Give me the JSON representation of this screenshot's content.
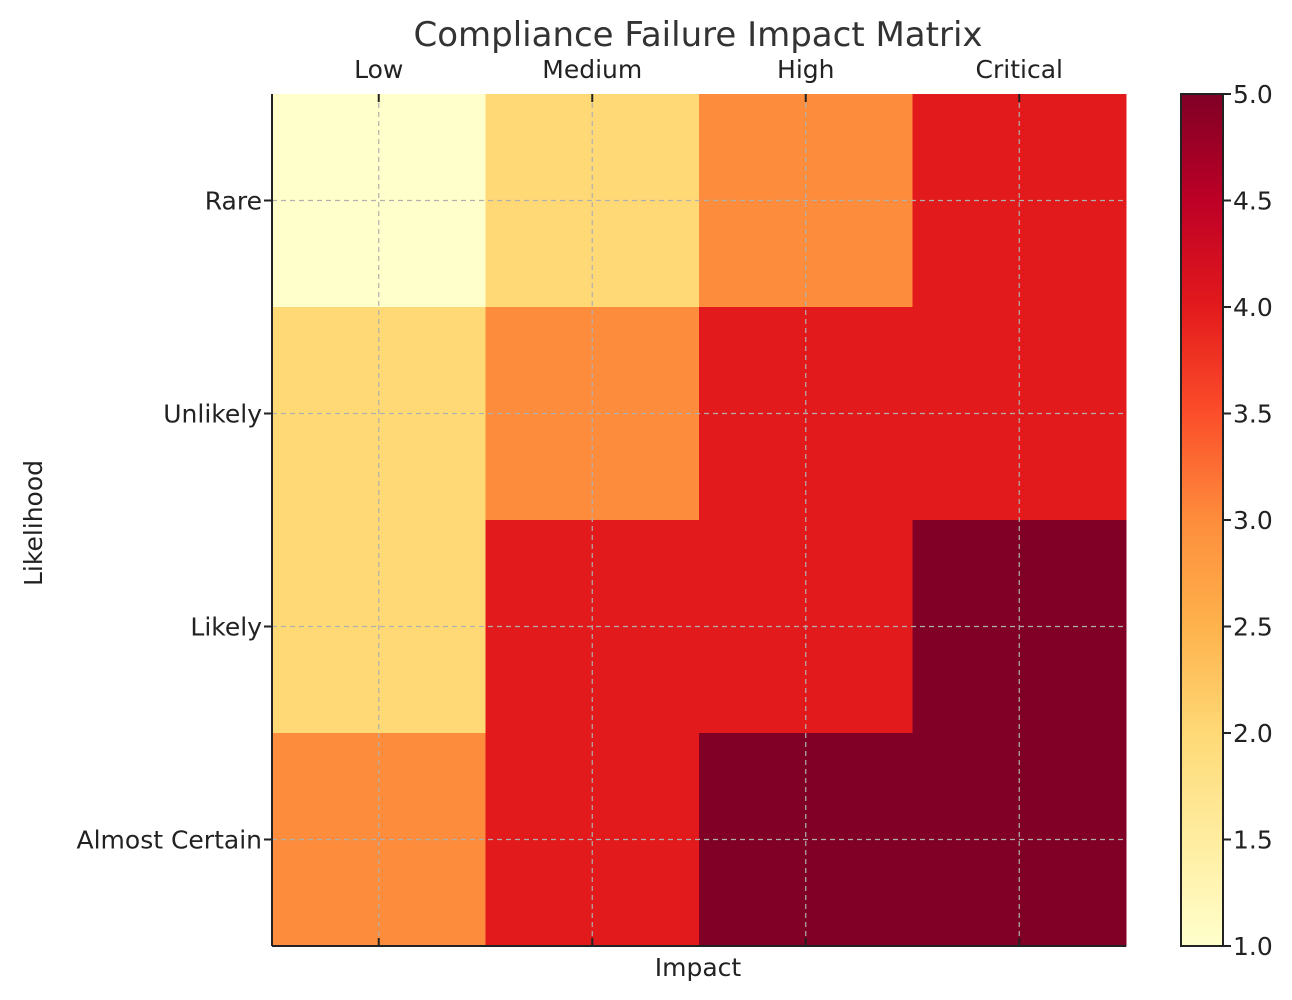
{
  "chart_data": {
    "type": "heatmap",
    "title": "Compliance Failure Impact Matrix",
    "xlabel": "Impact",
    "ylabel": "Likelihood",
    "x_categories": [
      "Low",
      "Medium",
      "High",
      "Critical"
    ],
    "y_categories": [
      "Rare",
      "Unlikely",
      "Likely",
      "Almost Certain"
    ],
    "values": [
      [
        1,
        2,
        3,
        4
      ],
      [
        2,
        3,
        4,
        4
      ],
      [
        2,
        4,
        4,
        5
      ],
      [
        3,
        4,
        5,
        5
      ]
    ],
    "colormap": "YlOrRd",
    "colorbar": {
      "range": [
        1.0,
        5.0
      ],
      "ticks": [
        "1.0",
        "1.5",
        "2.0",
        "2.5",
        "3.0",
        "3.5",
        "4.0",
        "4.5",
        "5.0"
      ]
    },
    "grid": true,
    "x_ticks_position": "top",
    "cell_colors": {
      "1": "#ffffcc",
      "2": "#fed976",
      "3": "#fd8d3c",
      "4": "#e31a1c",
      "5": "#800026"
    },
    "colorbar_stops": [
      "#ffffcc",
      "#ffeda0",
      "#fed976",
      "#feb24c",
      "#fd8d3c",
      "#fc4e2a",
      "#e31a1c",
      "#bd0026",
      "#800026"
    ]
  }
}
